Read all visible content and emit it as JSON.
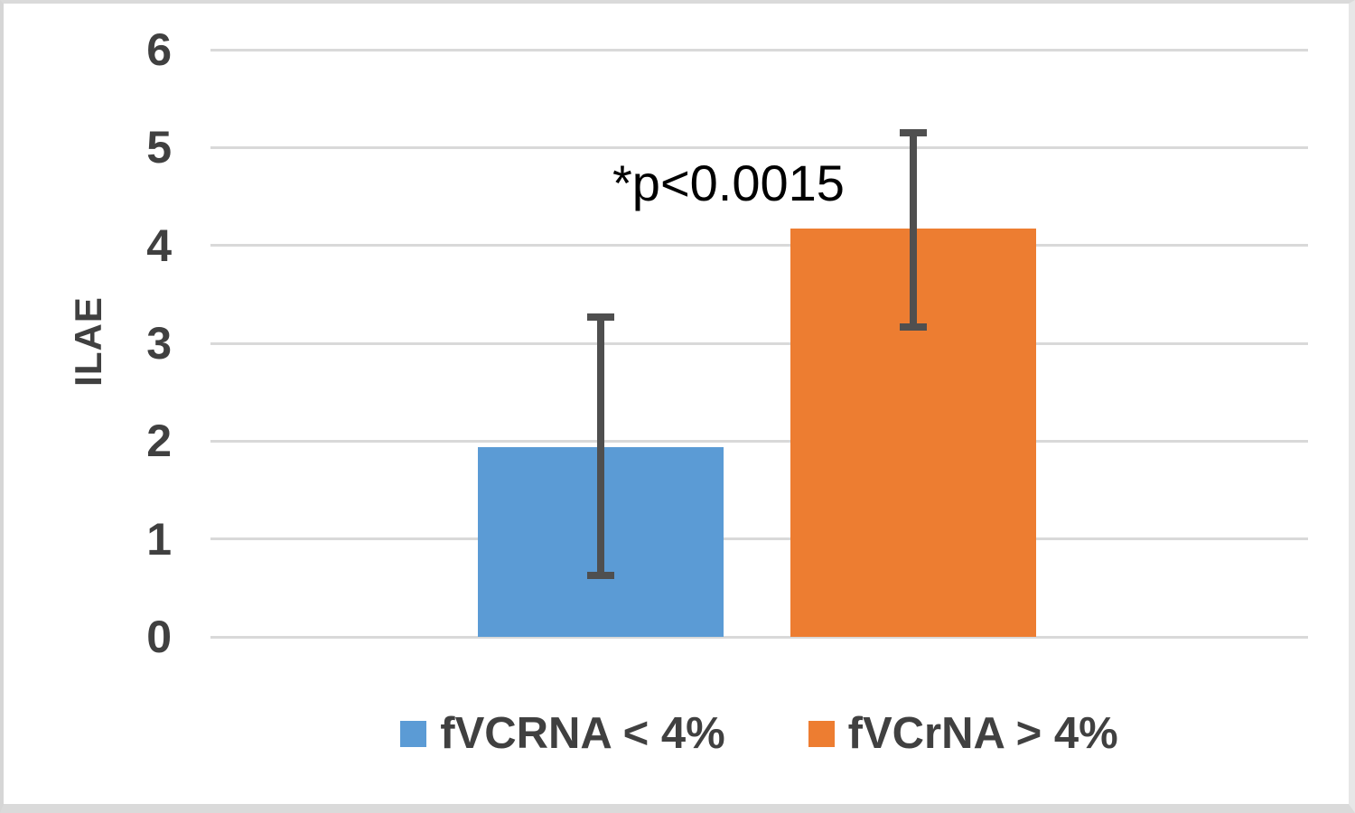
{
  "chart_data": {
    "type": "bar",
    "title": "",
    "ylabel": "ILAE",
    "xlabel": "",
    "annotation": "*p<0.0015",
    "categories": [
      ""
    ],
    "series": [
      {
        "name": "fVCRNA < 4%",
        "value": 1.94,
        "error_low": 0.63,
        "error_high": 3.27,
        "color": "#5B9BD5"
      },
      {
        "name": "fVCrNA > 4%",
        "value": 4.17,
        "error_low": 3.17,
        "error_high": 5.15,
        "color": "#ED7D31"
      }
    ],
    "ylim": [
      0,
      6
    ],
    "yticks": [
      0,
      1,
      2,
      3,
      4,
      5,
      6
    ],
    "grid": true,
    "legend_position": "bottom",
    "colors": {
      "gridline": "#D9D9D9",
      "error_bar": "#4F4F4F",
      "tick_text": "#404040",
      "axis_title_text": "#404040",
      "legend_text": "#404040",
      "annotation_text": "#000000",
      "background": "#FFFFFF"
    }
  }
}
